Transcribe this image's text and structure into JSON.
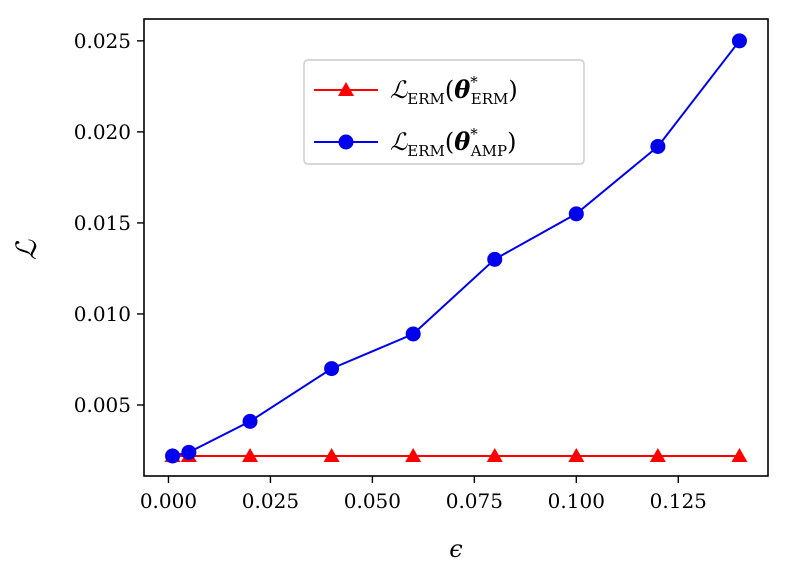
{
  "chart_data": {
    "type": "line",
    "xlabel": "ϵ",
    "ylabel": "ℒ",
    "xlim": [
      -0.006,
      0.147
    ],
    "ylim": [
      0.0011,
      0.0262
    ],
    "xticks": [
      "0.000",
      "0.025",
      "0.050",
      "0.075",
      "0.100",
      "0.125"
    ],
    "xtick_values": [
      0.0,
      0.025,
      0.05,
      0.075,
      0.1,
      0.125
    ],
    "yticks": [
      "0.005",
      "0.010",
      "0.015",
      "0.020",
      "0.025"
    ],
    "ytick_values": [
      0.005,
      0.01,
      0.015,
      0.02,
      0.025
    ],
    "grid": false,
    "legend_position": "upper-center",
    "series": [
      {
        "name": "ℒ_ERM(θ*_ERM)",
        "legend": {
          "base": "ℒ",
          "sub": "ERM",
          "arg": "θ",
          "sup": "*",
          "argsub": "ERM"
        },
        "color": "#ff0000",
        "marker": "triangle",
        "x": [
          0.001,
          0.005,
          0.02,
          0.04,
          0.06,
          0.08,
          0.1,
          0.12,
          0.14
        ],
        "y": [
          0.0022,
          0.0022,
          0.0022,
          0.0022,
          0.0022,
          0.0022,
          0.0022,
          0.0022,
          0.0022
        ]
      },
      {
        "name": "ℒ_ERM(θ*_AMP)",
        "legend": {
          "base": "ℒ",
          "sub": "ERM",
          "arg": "θ",
          "sup": "*",
          "argsub": "AMP"
        },
        "color": "#0000ee",
        "marker": "circle",
        "x": [
          0.001,
          0.005,
          0.02,
          0.04,
          0.06,
          0.08,
          0.1,
          0.12,
          0.14
        ],
        "y": [
          0.0022,
          0.0024,
          0.0041,
          0.007,
          0.0089,
          0.013,
          0.0155,
          0.0192,
          0.025
        ]
      }
    ]
  }
}
